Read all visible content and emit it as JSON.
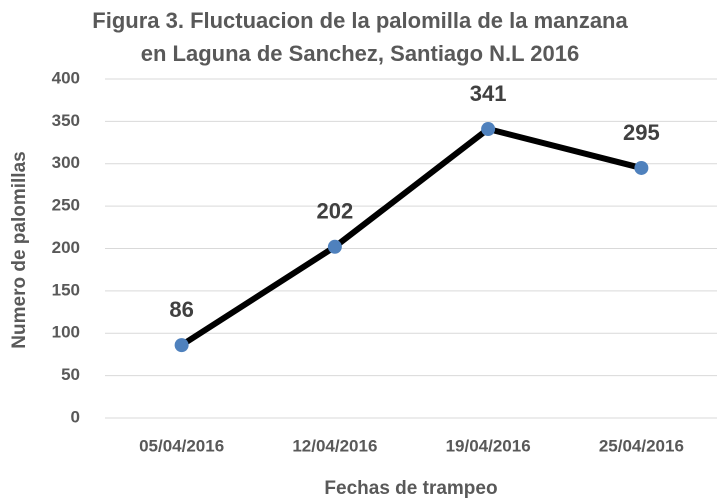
{
  "chart_data": {
    "type": "line",
    "title": [
      "Figura 3. Fluctuacion de la palomilla de la manzana",
      "en Laguna de Sanchez, Santiago N.L 2016"
    ],
    "xlabel": "Fechas de trampeo",
    "ylabel": "Numero de palomillas",
    "categories": [
      "05/04/2016",
      "12/04/2016",
      "19/04/2016",
      "25/04/2016"
    ],
    "series": [
      {
        "name": "Palomillas",
        "color": "#000000",
        "marker_color": "#4f81bd",
        "values": [
          86,
          202,
          341,
          295
        ]
      }
    ],
    "ylim": [
      0,
      400
    ],
    "yticks": [
      0,
      50,
      100,
      150,
      200,
      250,
      300,
      350,
      400
    ],
    "grid": true
  }
}
